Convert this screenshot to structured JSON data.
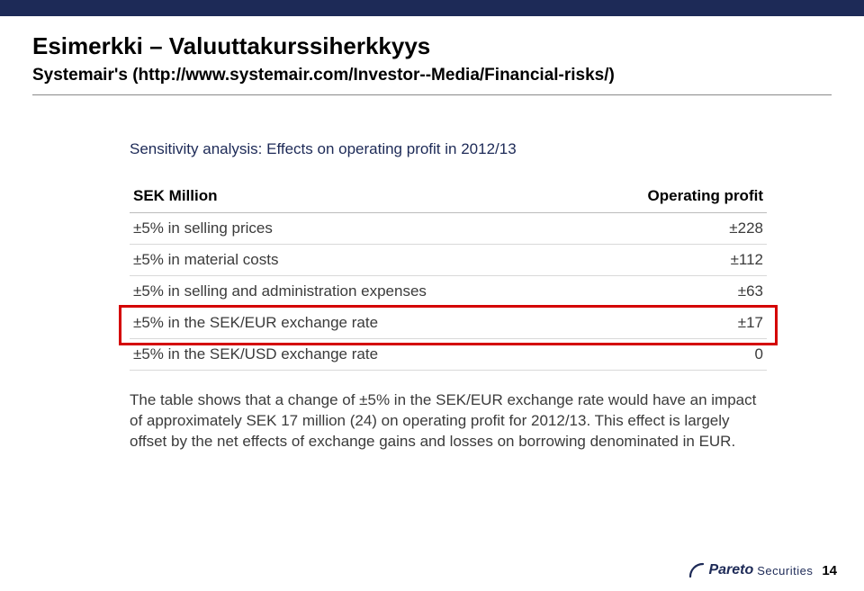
{
  "header": {
    "title": "Esimerkki – Valuuttakurssiherkkyys",
    "subtitle": "Systemair's (http://www.systemair.com/Investor--Media/Financial-risks/)"
  },
  "table": {
    "caption": "Sensitivity analysis: Effects on operating profit in 2012/13",
    "col_left": "SEK Million",
    "col_right": "Operating profit",
    "rows": [
      {
        "label": "±5% in selling prices",
        "value": "±228"
      },
      {
        "label": "±5% in material costs",
        "value": "±112"
      },
      {
        "label": "±5% in selling and administration expenses",
        "value": "±63"
      },
      {
        "label": "±5% in the SEK/EUR exchange rate",
        "value": "±17"
      },
      {
        "label": "±5% in the SEK/USD exchange rate",
        "value": "0"
      }
    ],
    "highlight_row_index": 3
  },
  "note": "The table shows that a change of ±5% in the SEK/EUR exchange rate would have an impact of approximately SEK 17 million (24) on operating profit for 2012/13. This effect is largely offset by the net effects of exchange gains and losses on borrowing denominated in EUR.",
  "footer": {
    "logo_word1": "Pareto",
    "logo_word2": "Securities",
    "page": "14"
  },
  "colors": {
    "brand": "#1d2a57",
    "highlight": "#d40000"
  }
}
